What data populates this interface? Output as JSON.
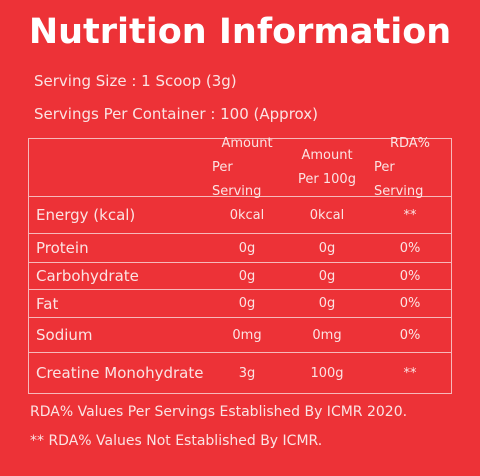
{
  "title": "Nutrition Information",
  "serving_size": "Serving Size : 1 Scoop (3g)",
  "servings_per_container": "Servings Per Container : 100 (Approx)",
  "table": {
    "headers": [
      {
        "line1": "Amount",
        "line2": "Per Serving"
      },
      {
        "line1": "Amount",
        "line2": "Per 100g"
      },
      {
        "line1": "RDA%",
        "line2": "Per Serving"
      }
    ],
    "rows": [
      {
        "name": "Energy (kcal)",
        "per_serving": "0kcal",
        "per_100g": "0kcal",
        "rda": "**"
      },
      {
        "name": "Protein",
        "per_serving": "0g",
        "per_100g": "0g",
        "rda": "0%"
      },
      {
        "name": "Carbohydrate",
        "per_serving": "0g",
        "per_100g": "0g",
        "rda": "0%"
      },
      {
        "name": "Fat",
        "per_serving": "0g",
        "per_100g": "0g",
        "rda": "0%"
      },
      {
        "name": "Sodium",
        "per_serving": "0mg",
        "per_100g": "0mg",
        "rda": "0%"
      },
      {
        "name": "Creatine Monohydrate",
        "per_serving": "3g",
        "per_100g": "100g",
        "rda": "**"
      }
    ]
  },
  "footnotes": [
    "RDA%  Values Per Servings Established By ICMR 2020.",
    "** RDA%  Values Not Established By ICMR."
  ]
}
